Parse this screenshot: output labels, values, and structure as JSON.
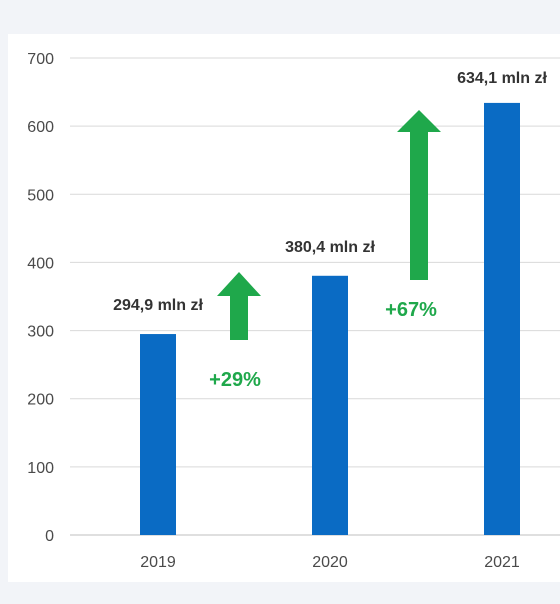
{
  "chart_data": {
    "type": "bar",
    "categories": [
      "2019",
      "2020",
      "2021"
    ],
    "values": [
      294.9,
      380.4,
      634.1
    ],
    "data_labels": [
      "294,9 mln zł",
      "380,4 mln zł",
      "634,1 mln zł"
    ],
    "title": "",
    "xlabel": "",
    "ylabel": "",
    "ylim": [
      0,
      700
    ],
    "yticks": [
      0,
      100,
      200,
      300,
      400,
      500,
      600,
      700
    ],
    "grid": true,
    "legend": "none",
    "annotations": [
      {
        "text": "+29%",
        "between": [
          "2019",
          "2020"
        ]
      },
      {
        "text": "+67%",
        "between": [
          "2020",
          "2021"
        ]
      }
    ]
  },
  "colors": {
    "bar": "#0a6bc4",
    "arrow": "#1fa84b",
    "grid": "#d9d9d9",
    "axis": "#bfbfbf"
  }
}
